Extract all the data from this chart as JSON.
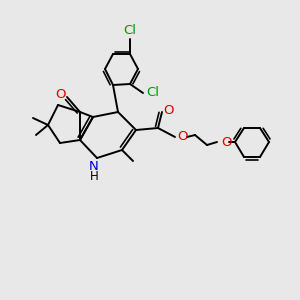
{
  "bg_color": "#e8e8e8",
  "bond_color": "#000000",
  "bond_width": 1.4,
  "n_color": "#0000cc",
  "o_color": "#dd0000",
  "cl_color": "#009900",
  "figsize": [
    3.0,
    3.0
  ],
  "dpi": 100,
  "xlim": [
    0,
    300
  ],
  "ylim": [
    0,
    300
  ]
}
